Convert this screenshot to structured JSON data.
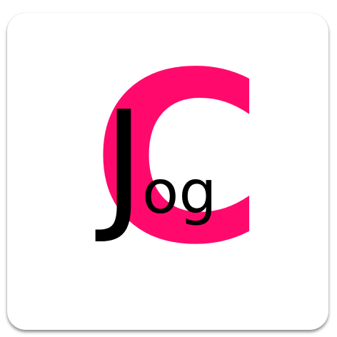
{
  "app_icon": {
    "logo_letter": "C",
    "word_initial": "J",
    "word_rest": "og"
  },
  "colors": {
    "accent_pink": "#ff0a6c",
    "text_black": "#000000",
    "background": "#ffffff"
  }
}
